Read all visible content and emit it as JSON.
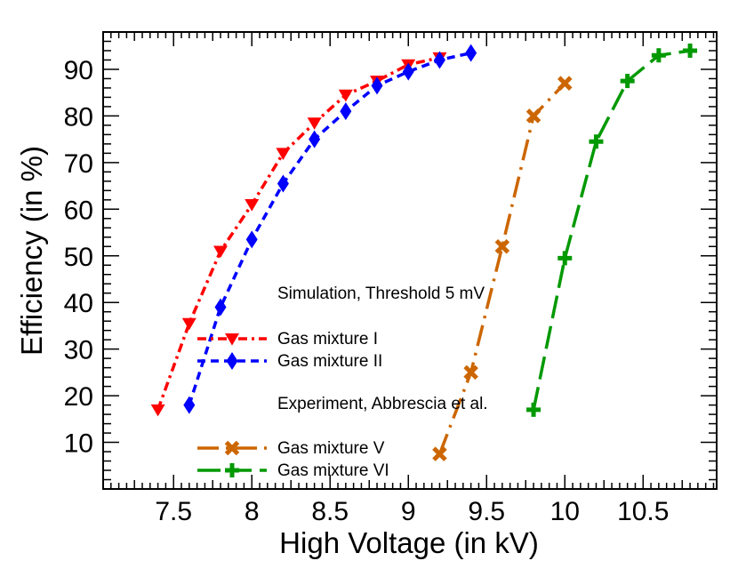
{
  "chart_data": {
    "type": "line",
    "xlabel": "High Voltage (in kV)",
    "ylabel": "Efficiency (in %)",
    "xlim": [
      7.05,
      10.97
    ],
    "ylim": [
      0,
      98
    ],
    "x_ticks": [
      7.5,
      8,
      8.5,
      9,
      9.5,
      10,
      10.5
    ],
    "x_tick_labels": [
      "7.5",
      "8",
      "8.5",
      "9",
      "9.5",
      "10",
      "10.5"
    ],
    "y_ticks": [
      10,
      20,
      30,
      40,
      50,
      60,
      70,
      80,
      90
    ],
    "y_tick_labels": [
      "10",
      "20",
      "30",
      "40",
      "50",
      "60",
      "70",
      "80",
      "90"
    ],
    "legend": {
      "group1_header": "Simulation, Threshold 5 mV",
      "group2_header": "Experiment, Abbrescia et al."
    },
    "series": [
      {
        "name": "Gas mixture I",
        "color": "#ff0000",
        "marker": "triangle-down",
        "linestyle": "dash-dot",
        "x": [
          7.4,
          7.6,
          7.8,
          8.0,
          8.2,
          8.4,
          8.6,
          8.8,
          9.0,
          9.2
        ],
        "y": [
          17,
          35.5,
          51,
          61,
          72,
          78.5,
          84.5,
          87.5,
          91,
          92.5
        ]
      },
      {
        "name": "Gas mixture II",
        "color": "#0000ff",
        "marker": "diamond",
        "linestyle": "dashed",
        "x": [
          7.6,
          7.8,
          8.0,
          8.2,
          8.4,
          8.6,
          8.8,
          9.0,
          9.2,
          9.4
        ],
        "y": [
          18,
          39,
          53.5,
          65.5,
          75,
          81,
          86.5,
          89.5,
          92,
          93.5
        ]
      },
      {
        "name": "Gas mixture V",
        "color": "#cc6600",
        "marker": "x-thick",
        "linestyle": "long-dash-dot",
        "x": [
          9.2,
          9.4,
          9.6,
          9.8,
          10.0
        ],
        "y": [
          7.5,
          25,
          52,
          80,
          87
        ]
      },
      {
        "name": "Gas mixture VI",
        "color": "#009900",
        "marker": "plus-thick",
        "linestyle": "long-dash",
        "x": [
          9.8,
          10.0,
          10.2,
          10.4,
          10.6,
          10.8
        ],
        "y": [
          17,
          49.5,
          74.5,
          87.5,
          93,
          94
        ]
      }
    ]
  }
}
